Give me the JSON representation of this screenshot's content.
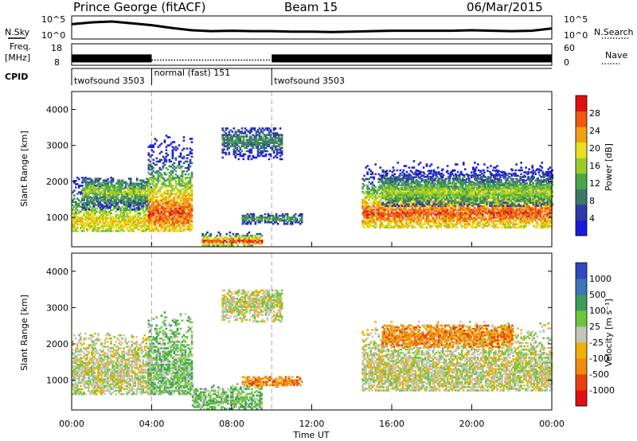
{
  "header": {
    "station": "Prince George (fitACF)",
    "beam": "Beam 15",
    "date": "06/Mar/2015"
  },
  "labels": {
    "nsky": "N.Sky",
    "nsearch": "N.Search",
    "freq_line1": "Freq.",
    "freq_line2": "[MHz]",
    "nave": "Nave",
    "cpid": "CPID"
  },
  "top_ticks": {
    "noise_left": [
      "10^5",
      "10^0"
    ],
    "noise_right": [
      "10^5",
      "10^0"
    ],
    "freq_left": [
      "18",
      "8"
    ],
    "freq_right": [
      "60",
      "0"
    ]
  },
  "cpid_segments": [
    {
      "label": "twofsound 3503",
      "start_hour": 0,
      "end_hour": 4
    },
    {
      "label": "normal (fast) 151",
      "start_hour": 4,
      "end_hour": 10
    },
    {
      "label": "twofsound 3503",
      "start_hour": 10,
      "end_hour": 24
    }
  ],
  "colors": {
    "power": [
      "#1a1adc",
      "#2e3aa8",
      "#3a7a6a",
      "#4aa64a",
      "#9acc28",
      "#e8e020",
      "#f0a010",
      "#ee5a10",
      "#e01010"
    ],
    "velocity": [
      "#3048c0",
      "#3a76b8",
      "#3c9c5a",
      "#6cc63c",
      "#c4c4bc",
      "#f0b000",
      "#f08a10",
      "#ea4010",
      "#e01010"
    ]
  },
  "chart_data": [
    {
      "type": "line",
      "name": "noise",
      "x_range_hours": [
        0,
        24
      ],
      "x": [
        0,
        1,
        2,
        3,
        4,
        5,
        6,
        7,
        8,
        9,
        10,
        11,
        12,
        13,
        14,
        15,
        16,
        17,
        18,
        19,
        20,
        21,
        22,
        23,
        24
      ],
      "y_log10": [
        3.2,
        3.6,
        3.8,
        3.4,
        3.0,
        2.4,
        1.9,
        1.7,
        1.8,
        1.7,
        1.7,
        1.6,
        1.6,
        1.5,
        1.6,
        1.7,
        1.8,
        1.8,
        1.8,
        1.8,
        1.9,
        1.8,
        1.7,
        1.8,
        2.3
      ],
      "ylim_log10": [
        0,
        5
      ]
    },
    {
      "type": "scatter",
      "name": "frequency",
      "x_range_hours": [
        0,
        24
      ],
      "segments": [
        {
          "start": 0,
          "end": 4,
          "freq_mhz": 11.2,
          "band": true
        },
        {
          "start": 4,
          "end": 10,
          "freq_mhz": 10.4,
          "band": false
        },
        {
          "start": 10,
          "end": 24,
          "freq_mhz": 11.2,
          "band": true
        }
      ],
      "ylim": [
        8,
        18
      ]
    },
    {
      "type": "heatmap",
      "name": "power",
      "xlabel": "",
      "ylabel": "Slant Range [km]",
      "x_range_hours": [
        0,
        24
      ],
      "ylim": [
        180,
        4500
      ],
      "yticks": [
        "1000",
        "2000",
        "3000",
        "4000"
      ],
      "colorbar_label": "Power [dB]",
      "colorbar_ticks": [
        "4",
        "8",
        "12",
        "16",
        "20",
        "24",
        "28"
      ],
      "colorbar_range": [
        0,
        30
      ],
      "bands": [
        {
          "t0": 0.0,
          "t1": 4.0,
          "r0": 600,
          "r1": 2300,
          "center": 850,
          "peak": 20
        },
        {
          "t0": 0.5,
          "t1": 3.8,
          "r0": 1200,
          "r1": 2100,
          "center": 1700,
          "peak": 16
        },
        {
          "t0": 3.8,
          "t1": 6.0,
          "r0": 600,
          "r1": 3500,
          "center": 1100,
          "peak": 26
        },
        {
          "t0": 6.5,
          "t1": 9.5,
          "r0": 200,
          "r1": 600,
          "center": 320,
          "peak": 28
        },
        {
          "t0": 7.5,
          "t1": 10.5,
          "r0": 2600,
          "r1": 3500,
          "center": 3100,
          "peak": 10
        },
        {
          "t0": 8.5,
          "t1": 11.5,
          "r0": 800,
          "r1": 1100,
          "center": 950,
          "peak": 12
        },
        {
          "t0": 14.5,
          "t1": 24.0,
          "r0": 700,
          "r1": 2600,
          "center": 1100,
          "peak": 26
        },
        {
          "t0": 15.5,
          "t1": 24.0,
          "r0": 1300,
          "r1": 2300,
          "center": 1700,
          "peak": 16
        }
      ]
    },
    {
      "type": "heatmap",
      "name": "velocity",
      "xlabel": "Time UT",
      "ylabel": "Slant Range [km]",
      "x_range_hours": [
        0,
        24
      ],
      "xticks": [
        "00:00",
        "04:00",
        "08:00",
        "12:00",
        "16:00",
        "20:00",
        "00:00"
      ],
      "ylim": [
        180,
        4500
      ],
      "yticks": [
        "1000",
        "2000",
        "3000",
        "4000"
      ],
      "colorbar_label": "Velocity [m s⁻¹]",
      "colorbar_ticks": [
        "1000",
        "500",
        "100",
        "25",
        "-25",
        "-100",
        "-500",
        "-1000"
      ],
      "bands": [
        {
          "t0": 0.0,
          "t1": 4.0,
          "r0": 600,
          "r1": 2300,
          "center": 1200,
          "class": 4
        },
        {
          "t0": 3.8,
          "t1": 6.0,
          "r0": 600,
          "r1": 3000,
          "center": 1200,
          "class": 3
        },
        {
          "t0": 6.0,
          "t1": 9.5,
          "r0": 200,
          "r1": 900,
          "center": 400,
          "class": 3
        },
        {
          "t0": 7.5,
          "t1": 10.5,
          "r0": 2600,
          "r1": 3500,
          "center": 3100,
          "class": 4
        },
        {
          "t0": 8.5,
          "t1": 11.5,
          "r0": 800,
          "r1": 1100,
          "center": 950,
          "class": 6
        },
        {
          "t0": 14.5,
          "t1": 24.0,
          "r0": 700,
          "r1": 2600,
          "center": 1200,
          "class": 4
        },
        {
          "t0": 15.5,
          "t1": 22.0,
          "r0": 1900,
          "r1": 2500,
          "center": 2200,
          "class": 6
        }
      ]
    }
  ]
}
